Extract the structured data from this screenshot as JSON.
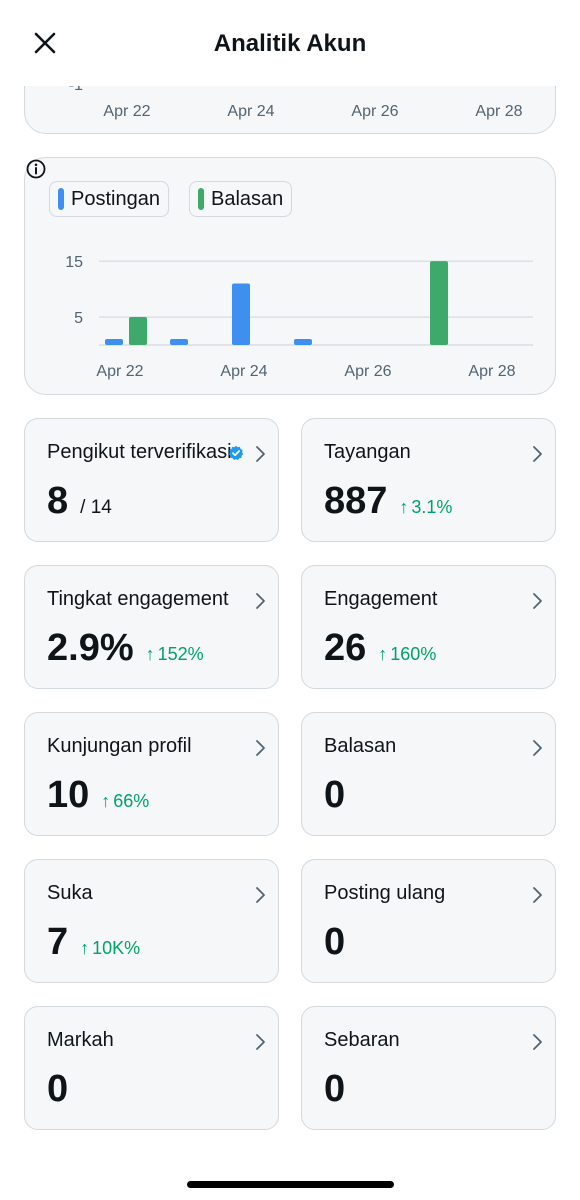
{
  "header": {
    "title": "Analitik Akun",
    "close_icon": "close-icon"
  },
  "top_chart": {
    "visible_y_tick": "-1",
    "x_ticks": [
      "Apr 22",
      "Apr 24",
      "Apr 26",
      "Apr 28"
    ],
    "bar_color": "#e0312f"
  },
  "chart_data": {
    "type": "bar",
    "categories": [
      "Apr 22",
      "Apr 23",
      "Apr 24",
      "Apr 25",
      "Apr 26",
      "Apr 27",
      "Apr 28"
    ],
    "x_tick_labels": [
      "Apr 22",
      "Apr 24",
      "Apr 26",
      "Apr 28"
    ],
    "y_ticks": [
      15,
      5
    ],
    "ylim": [
      0,
      17
    ],
    "grid": true,
    "legend_placement": "top-left",
    "series": [
      {
        "name": "Postingan",
        "color": "#3f8ff0",
        "values": [
          1,
          1,
          11,
          1,
          0,
          0,
          0
        ]
      },
      {
        "name": "Balasan",
        "color": "#3daa6b",
        "values": [
          5,
          0,
          0,
          0,
          0,
          15,
          0
        ]
      }
    ]
  },
  "legend": {
    "posts": "Postingan",
    "replies": "Balasan",
    "info_icon": "info-icon"
  },
  "cards": [
    {
      "label": "Pengikut terverifikasi",
      "value": "8",
      "total": "/ 14",
      "delta": "",
      "verified": true
    },
    {
      "label": "Tayangan",
      "value": "887",
      "delta": "3.1%"
    },
    {
      "label": "Tingkat engagement",
      "value": "2.9%",
      "delta": "152%"
    },
    {
      "label": "Engagement",
      "value": "26",
      "delta": "160%"
    },
    {
      "label": "Kunjungan profil",
      "value": "10",
      "delta": "66%"
    },
    {
      "label": "Balasan",
      "value": "0",
      "delta": ""
    },
    {
      "label": "Suka",
      "value": "7",
      "delta": "10K%"
    },
    {
      "label": "Posting ulang",
      "value": "0",
      "delta": ""
    },
    {
      "label": "Markah",
      "value": "0",
      "delta": ""
    },
    {
      "label": "Sebaran",
      "value": "0",
      "delta": ""
    }
  ],
  "colors": {
    "positive_delta": "#00a366",
    "verified_badge": "#1d9bf0"
  }
}
